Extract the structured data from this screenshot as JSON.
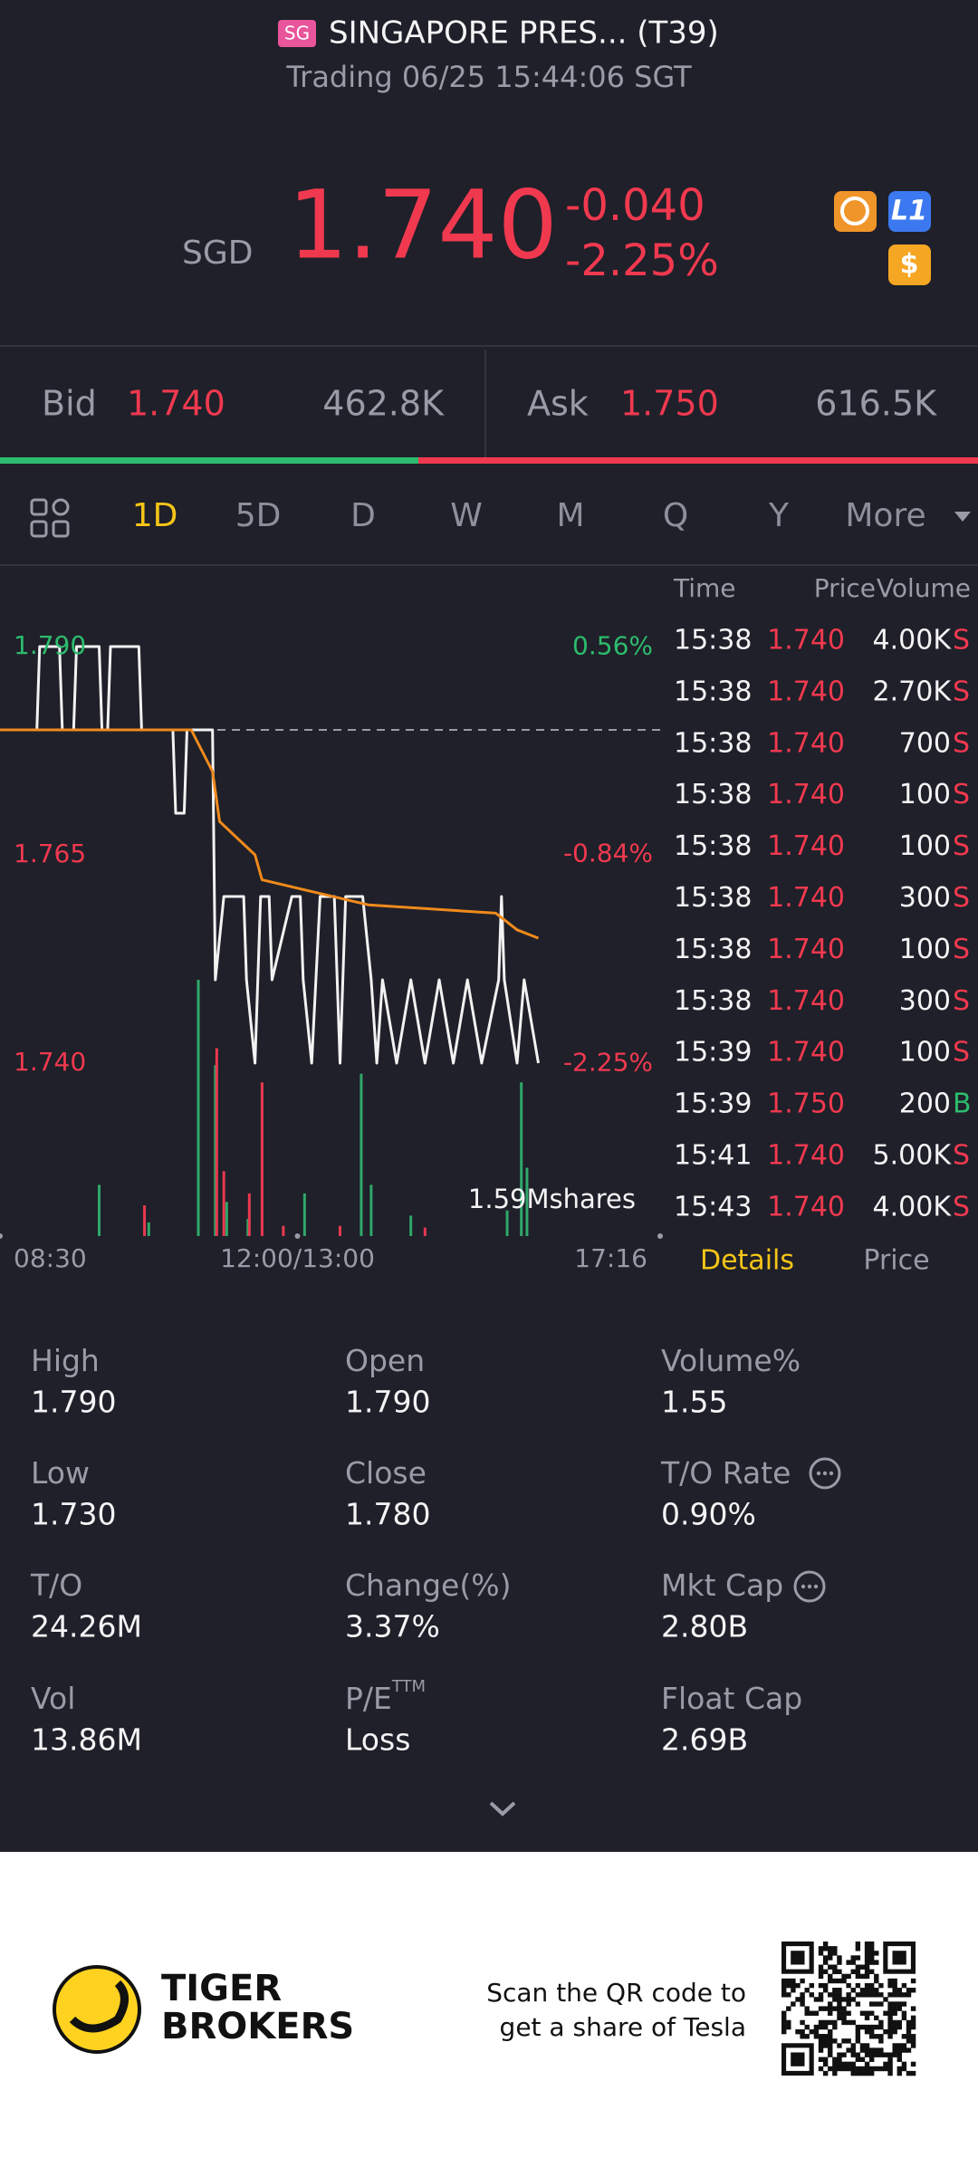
{
  "header": {
    "flag": "SG",
    "name": "SINGAPORE PRES... (T39)",
    "status": "Trading 06/25 15:44:06 SGT"
  },
  "quote": {
    "currency": "SGD",
    "price": "1.740",
    "change": "-0.040",
    "change_pct": "-2.25%",
    "badges": [
      "L1",
      "$"
    ]
  },
  "bidask": {
    "bid_label": "Bid",
    "bid": "1.740",
    "bid_volume": "462.8K",
    "ask_label": "Ask",
    "ask": "1.750",
    "ask_volume": "616.5K"
  },
  "tabs": [
    "1D",
    "5D",
    "D",
    "W",
    "M",
    "Q",
    "Y",
    "More"
  ],
  "chart_data": {
    "type": "line",
    "xlim": [
      0,
      466
    ],
    "xticks": [
      {
        "value": 0,
        "label": "08:30"
      },
      {
        "value": 210,
        "label": "12:00/13:00"
      },
      {
        "value": 466,
        "label": "17:16"
      }
    ],
    "ylim": [
      1.74,
      1.79
    ],
    "yticks": [
      {
        "value": 1.79,
        "label": "1.790"
      },
      {
        "value": 1.765,
        "label": "1.765"
      },
      {
        "value": 1.74,
        "label": "1.740"
      }
    ],
    "y2lim": [
      -2.247,
      0.562
    ],
    "y2ticks": [
      {
        "value": 0.56,
        "label": "0.56%"
      },
      {
        "value": -0.84,
        "label": "-0.84%"
      },
      {
        "value": -2.25,
        "label": "-2.25%"
      }
    ],
    "reference_line": 1.78,
    "series": [
      {
        "color": "#f2f2f2",
        "x": [
          0,
          26,
          28,
          42,
          44,
          52,
          54,
          70,
          72,
          76,
          78,
          98,
          100,
          122,
          124,
          130,
          132,
          150,
          152,
          158,
          172,
          174,
          180,
          184,
          190,
          192,
          206,
          212,
          214,
          220,
          226,
          236,
          240,
          244,
          256,
          262,
          266,
          270,
          280,
          290,
          300,
          310,
          320,
          330,
          340,
          352,
          354,
          356,
          365,
          370,
          380
        ],
        "values": [
          1.78,
          1.78,
          1.79,
          1.79,
          1.78,
          1.78,
          1.79,
          1.79,
          1.78,
          1.78,
          1.79,
          1.79,
          1.78,
          1.78,
          1.77,
          1.77,
          1.78,
          1.78,
          1.75,
          1.76,
          1.76,
          1.75,
          1.74,
          1.76,
          1.76,
          1.75,
          1.76,
          1.76,
          1.75,
          1.74,
          1.76,
          1.76,
          1.74,
          1.76,
          1.76,
          1.75,
          1.74,
          1.75,
          1.74,
          1.75,
          1.74,
          1.75,
          1.74,
          1.75,
          1.74,
          1.75,
          1.76,
          1.75,
          1.74,
          1.75,
          1.74
        ]
      },
      {
        "color": "#f08a1c",
        "x": [
          0,
          135,
          150,
          155,
          180,
          185,
          210,
          260,
          350,
          365,
          380
        ],
        "values": [
          1.78,
          1.78,
          1.775,
          1.769,
          1.765,
          1.762,
          1.761,
          1.759,
          1.758,
          1.756,
          1.755
        ]
      }
    ],
    "volume": {
      "label": "1.59Mshares",
      "ylim": [
        0,
        1590000
      ],
      "series": [
        {
          "color": "#2fa86a",
          "x": [
            70,
            105,
            140,
            152,
            160,
            175,
            215,
            255,
            262,
            290,
            358,
            368,
            372
          ],
          "values": [
            300000,
            80000,
            1500000,
            1000000,
            200000,
            100000,
            250000,
            950000,
            300000,
            120000,
            150000,
            900000,
            400000
          ]
        },
        {
          "color": "#e8394f",
          "x": [
            102,
            153,
            158,
            176,
            185,
            200,
            240,
            300
          ],
          "values": [
            180000,
            1100000,
            380000,
            250000,
            900000,
            60000,
            60000,
            50000
          ]
        }
      ]
    }
  },
  "trades": {
    "headers": [
      "Time",
      "Price",
      "Volume"
    ],
    "rows": [
      {
        "time": "15:38",
        "price": "1.740",
        "volume": "4.00K",
        "side": "S",
        "color": "#f0394f"
      },
      {
        "time": "15:38",
        "price": "1.740",
        "volume": "2.70K",
        "side": "S",
        "color": "#f0394f"
      },
      {
        "time": "15:38",
        "price": "1.740",
        "volume": "700",
        "side": "S",
        "color": "#f0394f"
      },
      {
        "time": "15:38",
        "price": "1.740",
        "volume": "100",
        "side": "S",
        "color": "#f0394f"
      },
      {
        "time": "15:38",
        "price": "1.740",
        "volume": "100",
        "side": "S",
        "color": "#f0394f"
      },
      {
        "time": "15:38",
        "price": "1.740",
        "volume": "300",
        "side": "S",
        "color": "#f0394f"
      },
      {
        "time": "15:38",
        "price": "1.740",
        "volume": "100",
        "side": "S",
        "color": "#f0394f"
      },
      {
        "time": "15:38",
        "price": "1.740",
        "volume": "300",
        "side": "S",
        "color": "#f0394f"
      },
      {
        "time": "15:39",
        "price": "1.740",
        "volume": "100",
        "side": "S",
        "color": "#f0394f"
      },
      {
        "time": "15:39",
        "price": "1.750",
        "volume": "200",
        "side": "B",
        "color": "#2dbb6d"
      },
      {
        "time": "15:41",
        "price": "1.740",
        "volume": "5.00K",
        "side": "S",
        "color": "#f0394f"
      },
      {
        "time": "15:43",
        "price": "1.740",
        "volume": "4.00K",
        "side": "S",
        "color": "#f0394f"
      }
    ],
    "tabs": [
      "Details",
      "Price"
    ]
  },
  "stats": [
    {
      "label": "High",
      "value": "1.790"
    },
    {
      "label": "Open",
      "value": "1.790"
    },
    {
      "label": "Volume%",
      "value": "1.55"
    },
    {
      "label": "Low",
      "value": "1.730"
    },
    {
      "label": "Close",
      "value": "1.780"
    },
    {
      "label": "T/O Rate",
      "value": "0.90%"
    },
    {
      "label": "T/O",
      "value": "24.26M"
    },
    {
      "label": "Change(%)",
      "value": "3.37%"
    },
    {
      "label": "Mkt Cap",
      "value": "2.80B"
    },
    {
      "label": "Vol",
      "value": "13.86M"
    },
    {
      "label": "P/E",
      "sup": "TTM",
      "value": "Loss"
    },
    {
      "label": "Float Cap",
      "value": "2.69B"
    }
  ],
  "footer": {
    "brand": [
      "TIGER",
      "BROKERS"
    ],
    "promo": [
      "Scan the QR code to",
      "get a share of Tesla"
    ]
  }
}
